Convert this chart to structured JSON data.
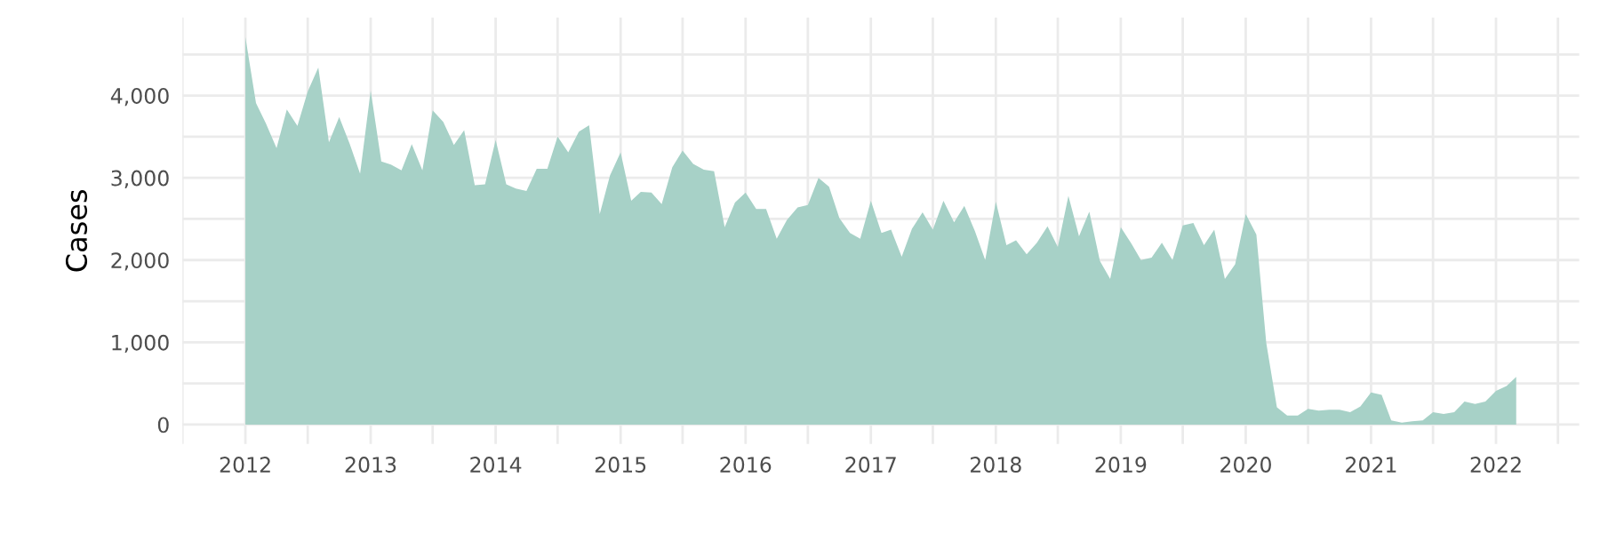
{
  "chart_data": {
    "type": "area",
    "ylabel": "Cases",
    "color": "#a7d1c7",
    "grid": true,
    "legend": false,
    "x": [
      "2012-01",
      "2012-02",
      "2012-03",
      "2012-04",
      "2012-05",
      "2012-06",
      "2012-07",
      "2012-08",
      "2012-09",
      "2012-10",
      "2012-11",
      "2012-12",
      "2013-01",
      "2013-02",
      "2013-03",
      "2013-04",
      "2013-05",
      "2013-06",
      "2013-07",
      "2013-08",
      "2013-09",
      "2013-10",
      "2013-11",
      "2013-12",
      "2014-01",
      "2014-02",
      "2014-03",
      "2014-04",
      "2014-05",
      "2014-06",
      "2014-07",
      "2014-08",
      "2014-09",
      "2014-10",
      "2014-11",
      "2014-12",
      "2015-01",
      "2015-02",
      "2015-03",
      "2015-04",
      "2015-05",
      "2015-06",
      "2015-07",
      "2015-08",
      "2015-09",
      "2015-10",
      "2015-11",
      "2015-12",
      "2016-01",
      "2016-02",
      "2016-03",
      "2016-04",
      "2016-05",
      "2016-06",
      "2016-07",
      "2016-08",
      "2016-09",
      "2016-10",
      "2016-11",
      "2016-12",
      "2017-01",
      "2017-02",
      "2017-03",
      "2017-04",
      "2017-05",
      "2017-06",
      "2017-07",
      "2017-08",
      "2017-09",
      "2017-10",
      "2017-11",
      "2017-12",
      "2018-01",
      "2018-02",
      "2018-03",
      "2018-04",
      "2018-05",
      "2018-06",
      "2018-07",
      "2018-08",
      "2018-09",
      "2018-10",
      "2018-11",
      "2018-12",
      "2019-01",
      "2019-02",
      "2019-03",
      "2019-04",
      "2019-05",
      "2019-06",
      "2019-07",
      "2019-08",
      "2019-09",
      "2019-10",
      "2019-11",
      "2019-12",
      "2020-01",
      "2020-02",
      "2020-03",
      "2020-04",
      "2020-05",
      "2020-06",
      "2020-07",
      "2020-08",
      "2020-09",
      "2020-10",
      "2020-11",
      "2020-12",
      "2021-01",
      "2021-02",
      "2021-03",
      "2021-04",
      "2021-05",
      "2021-06",
      "2021-07",
      "2021-08",
      "2021-09",
      "2021-10",
      "2021-11",
      "2021-12",
      "2022-01",
      "2022-02",
      "2022-03"
    ],
    "values": [
      4710,
      3910,
      3660,
      3360,
      3830,
      3630,
      4050,
      4340,
      3430,
      3740,
      3410,
      3050,
      4060,
      3200,
      3160,
      3090,
      3410,
      3090,
      3820,
      3680,
      3400,
      3580,
      2910,
      2920,
      3460,
      2920,
      2870,
      2840,
      3110,
      3110,
      3500,
      3310,
      3560,
      3640,
      2560,
      3030,
      3310,
      2720,
      2830,
      2820,
      2680,
      3130,
      3330,
      3170,
      3100,
      3080,
      2400,
      2700,
      2820,
      2620,
      2620,
      2260,
      2490,
      2640,
      2670,
      3000,
      2890,
      2510,
      2330,
      2260,
      2720,
      2330,
      2370,
      2040,
      2380,
      2580,
      2370,
      2720,
      2460,
      2660,
      2350,
      2000,
      2710,
      2180,
      2240,
      2070,
      2210,
      2410,
      2160,
      2780,
      2290,
      2590,
      1990,
      1770,
      2400,
      2200,
      2000,
      2030,
      2210,
      2000,
      2420,
      2450,
      2180,
      2370,
      1770,
      1950,
      2560,
      2310,
      990,
      210,
      110,
      110,
      190,
      170,
      180,
      180,
      150,
      220,
      390,
      360,
      50,
      25,
      40,
      50,
      150,
      130,
      150,
      280,
      250,
      280,
      410,
      470,
      580
    ],
    "xlim": [
      "2011-07-01",
      "2022-09-01"
    ],
    "xticks": [
      "2012",
      "2013",
      "2014",
      "2015",
      "2016",
      "2017",
      "2018",
      "2019",
      "2020",
      "2021",
      "2022",
      {
        "value": "2011-07",
        "label": null
      },
      {
        "value": "2012-07",
        "label": null
      },
      {
        "value": "2013-07",
        "label": null
      },
      {
        "value": "2014-07",
        "label": null
      },
      {
        "value": "2015-07",
        "label": null
      },
      {
        "value": "2016-07",
        "label": null
      },
      {
        "value": "2017-07",
        "label": null
      },
      {
        "value": "2018-07",
        "label": null
      },
      {
        "value": "2019-07",
        "label": null
      },
      {
        "value": "2020-07",
        "label": null
      },
      {
        "value": "2021-07",
        "label": null
      },
      {
        "value": "2022-07",
        "label": null
      }
    ],
    "ylim": [
      -236,
      4948
    ],
    "yticks": [
      {
        "value": 0,
        "label": "0"
      },
      {
        "value": 1000,
        "label": "1,000"
      },
      {
        "value": 2000,
        "label": "2,000"
      },
      {
        "value": 3000,
        "label": "3,000"
      },
      {
        "value": 4000,
        "label": "4,000"
      },
      {
        "value": 500,
        "label": null
      },
      {
        "value": 1500,
        "label": null
      },
      {
        "value": 2500,
        "label": null
      },
      {
        "value": 3500,
        "label": null
      },
      {
        "value": 4500,
        "label": null
      }
    ]
  }
}
